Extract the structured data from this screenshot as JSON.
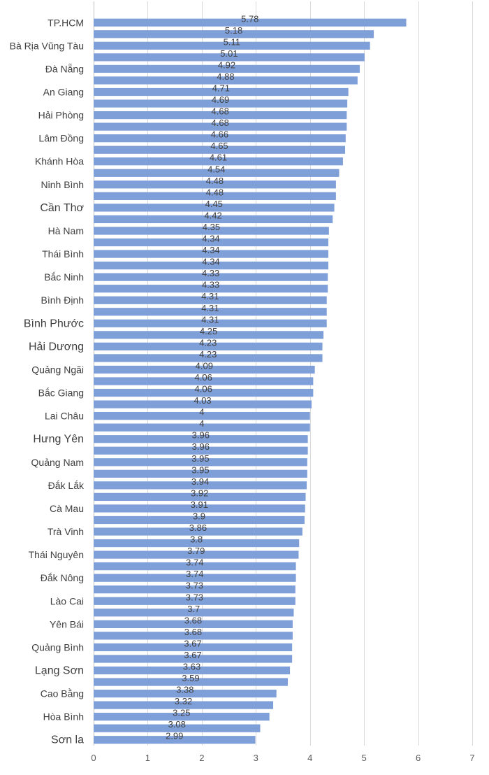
{
  "chart_data": {
    "type": "bar",
    "orientation": "horizontal",
    "title": "",
    "xlabel": "",
    "ylabel": "",
    "xlim": [
      0,
      7
    ],
    "xticks": [
      0,
      1,
      2,
      3,
      4,
      5,
      6,
      7
    ],
    "grid": true,
    "legend": "none",
    "bar_color": "#7f9fd8",
    "categories": [
      "TP.HCM",
      "",
      "Bà Rịa Vũng Tàu",
      "",
      "Đà Nẵng",
      "",
      "An Giang",
      "",
      "Hải Phòng",
      "",
      "Lâm Đồng",
      "",
      "Khánh Hòa",
      "",
      "Ninh Bình",
      "",
      "Cần Thơ",
      "",
      "Hà Nam",
      "",
      "Thái Bình",
      "",
      "Bắc Ninh",
      "",
      "Bình Định",
      "",
      "Bình Phước",
      "",
      "Hải Dương",
      "",
      "Quảng Ngãi",
      "",
      "Bắc Giang",
      "",
      "Lai Châu",
      "",
      "Hưng Yên",
      "",
      "Quảng Nam",
      "",
      "Đắk Lắk",
      "",
      "Cà Mau",
      "",
      "Trà Vinh",
      "",
      "Thái Nguyên",
      "",
      "Đắk Nông",
      "",
      "Lào Cai",
      "",
      "Yên Bái",
      "",
      "Quảng Bình",
      "",
      "Lạng Sơn",
      "",
      "Cao Bằng",
      "",
      "Hòa Bình",
      "",
      "Sơn la"
    ],
    "values": [
      5.78,
      5.18,
      5.11,
      5.01,
      4.92,
      4.88,
      4.71,
      4.69,
      4.68,
      4.68,
      4.66,
      4.65,
      4.61,
      4.54,
      4.48,
      4.48,
      4.45,
      4.42,
      4.35,
      4.34,
      4.34,
      4.34,
      4.33,
      4.33,
      4.31,
      4.31,
      4.31,
      4.25,
      4.23,
      4.23,
      4.09,
      4.06,
      4.06,
      4.03,
      4,
      4,
      3.96,
      3.96,
      3.95,
      3.95,
      3.94,
      3.92,
      3.91,
      3.9,
      3.86,
      3.8,
      3.79,
      3.74,
      3.74,
      3.73,
      3.73,
      3.7,
      3.68,
      3.68,
      3.67,
      3.67,
      3.63,
      3.59,
      3.38,
      3.32,
      3.25,
      3.08,
      2.99
    ],
    "value_labels": [
      "5.78",
      "5.18",
      "5.11",
      "5.01",
      "4.92",
      "4.88",
      "4.71",
      "4.69",
      "4.68",
      "4.68",
      "4.66",
      "4.65",
      "4.61",
      "4.54",
      "4.48",
      "4.48",
      "4.45",
      "4.42",
      "4.35",
      "4.34",
      "4.34",
      "4.34",
      "4.33",
      "4.33",
      "4.31",
      "4.31",
      "4.31",
      "4.25",
      "4.23",
      "4.23",
      "4.09",
      "4.06",
      "4.06",
      "4.03",
      "4",
      "4",
      "3.96",
      "3.96",
      "3.95",
      "3.95",
      "3.94",
      "3.92",
      "3.91",
      "3.9",
      "3.86",
      "3.8",
      "3.79",
      "3.74",
      "3.74",
      "3.73",
      "3.73",
      "3.7",
      "3.68",
      "3.68",
      "3.67",
      "3.67",
      "3.63",
      "3.59",
      "3.38",
      "3.32",
      "3.25",
      "3.08",
      "2.99"
    ]
  }
}
